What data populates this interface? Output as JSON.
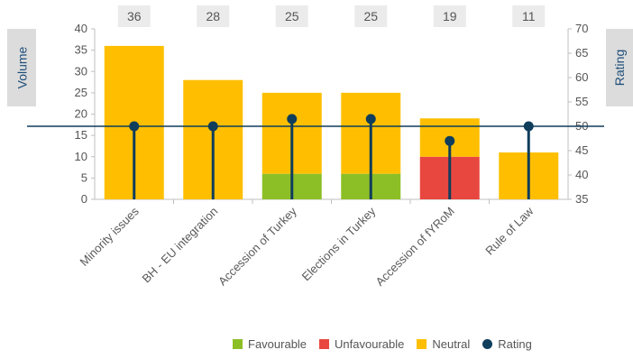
{
  "chart_data": {
    "type": "bar",
    "categories": [
      "Minority issues",
      "BH - EU integration",
      "Accession of Turkey",
      "Elections in Turkey",
      "Accession of fYRoM",
      "Rule of Law"
    ],
    "volume_totals": [
      36,
      28,
      25,
      25,
      19,
      11
    ],
    "series": [
      {
        "name": "Favourable",
        "values": [
          0,
          0,
          6,
          6,
          0,
          0
        ],
        "color": "#8cbf26"
      },
      {
        "name": "Unfavourable",
        "values": [
          0,
          0,
          0,
          0,
          10,
          0
        ],
        "color": "#e8473f"
      },
      {
        "name": "Neutral",
        "values": [
          36,
          28,
          19,
          19,
          9,
          11
        ],
        "color": "#ffbf00"
      }
    ],
    "rating": {
      "name": "Rating",
      "values": [
        50,
        50,
        51.5,
        51.5,
        47,
        50
      ],
      "color": "#0f3d5c"
    },
    "reference_line": 50,
    "ylabel": "Volume",
    "y2label": "Rating",
    "ylim": [
      0,
      40
    ],
    "y2lim": [
      35,
      70
    ],
    "yticks": [
      0,
      5,
      10,
      15,
      20,
      25,
      30,
      35,
      40
    ],
    "y2ticks": [
      35,
      40,
      45,
      50,
      55,
      60,
      65,
      70
    ],
    "legend_position": "bottom-right"
  }
}
